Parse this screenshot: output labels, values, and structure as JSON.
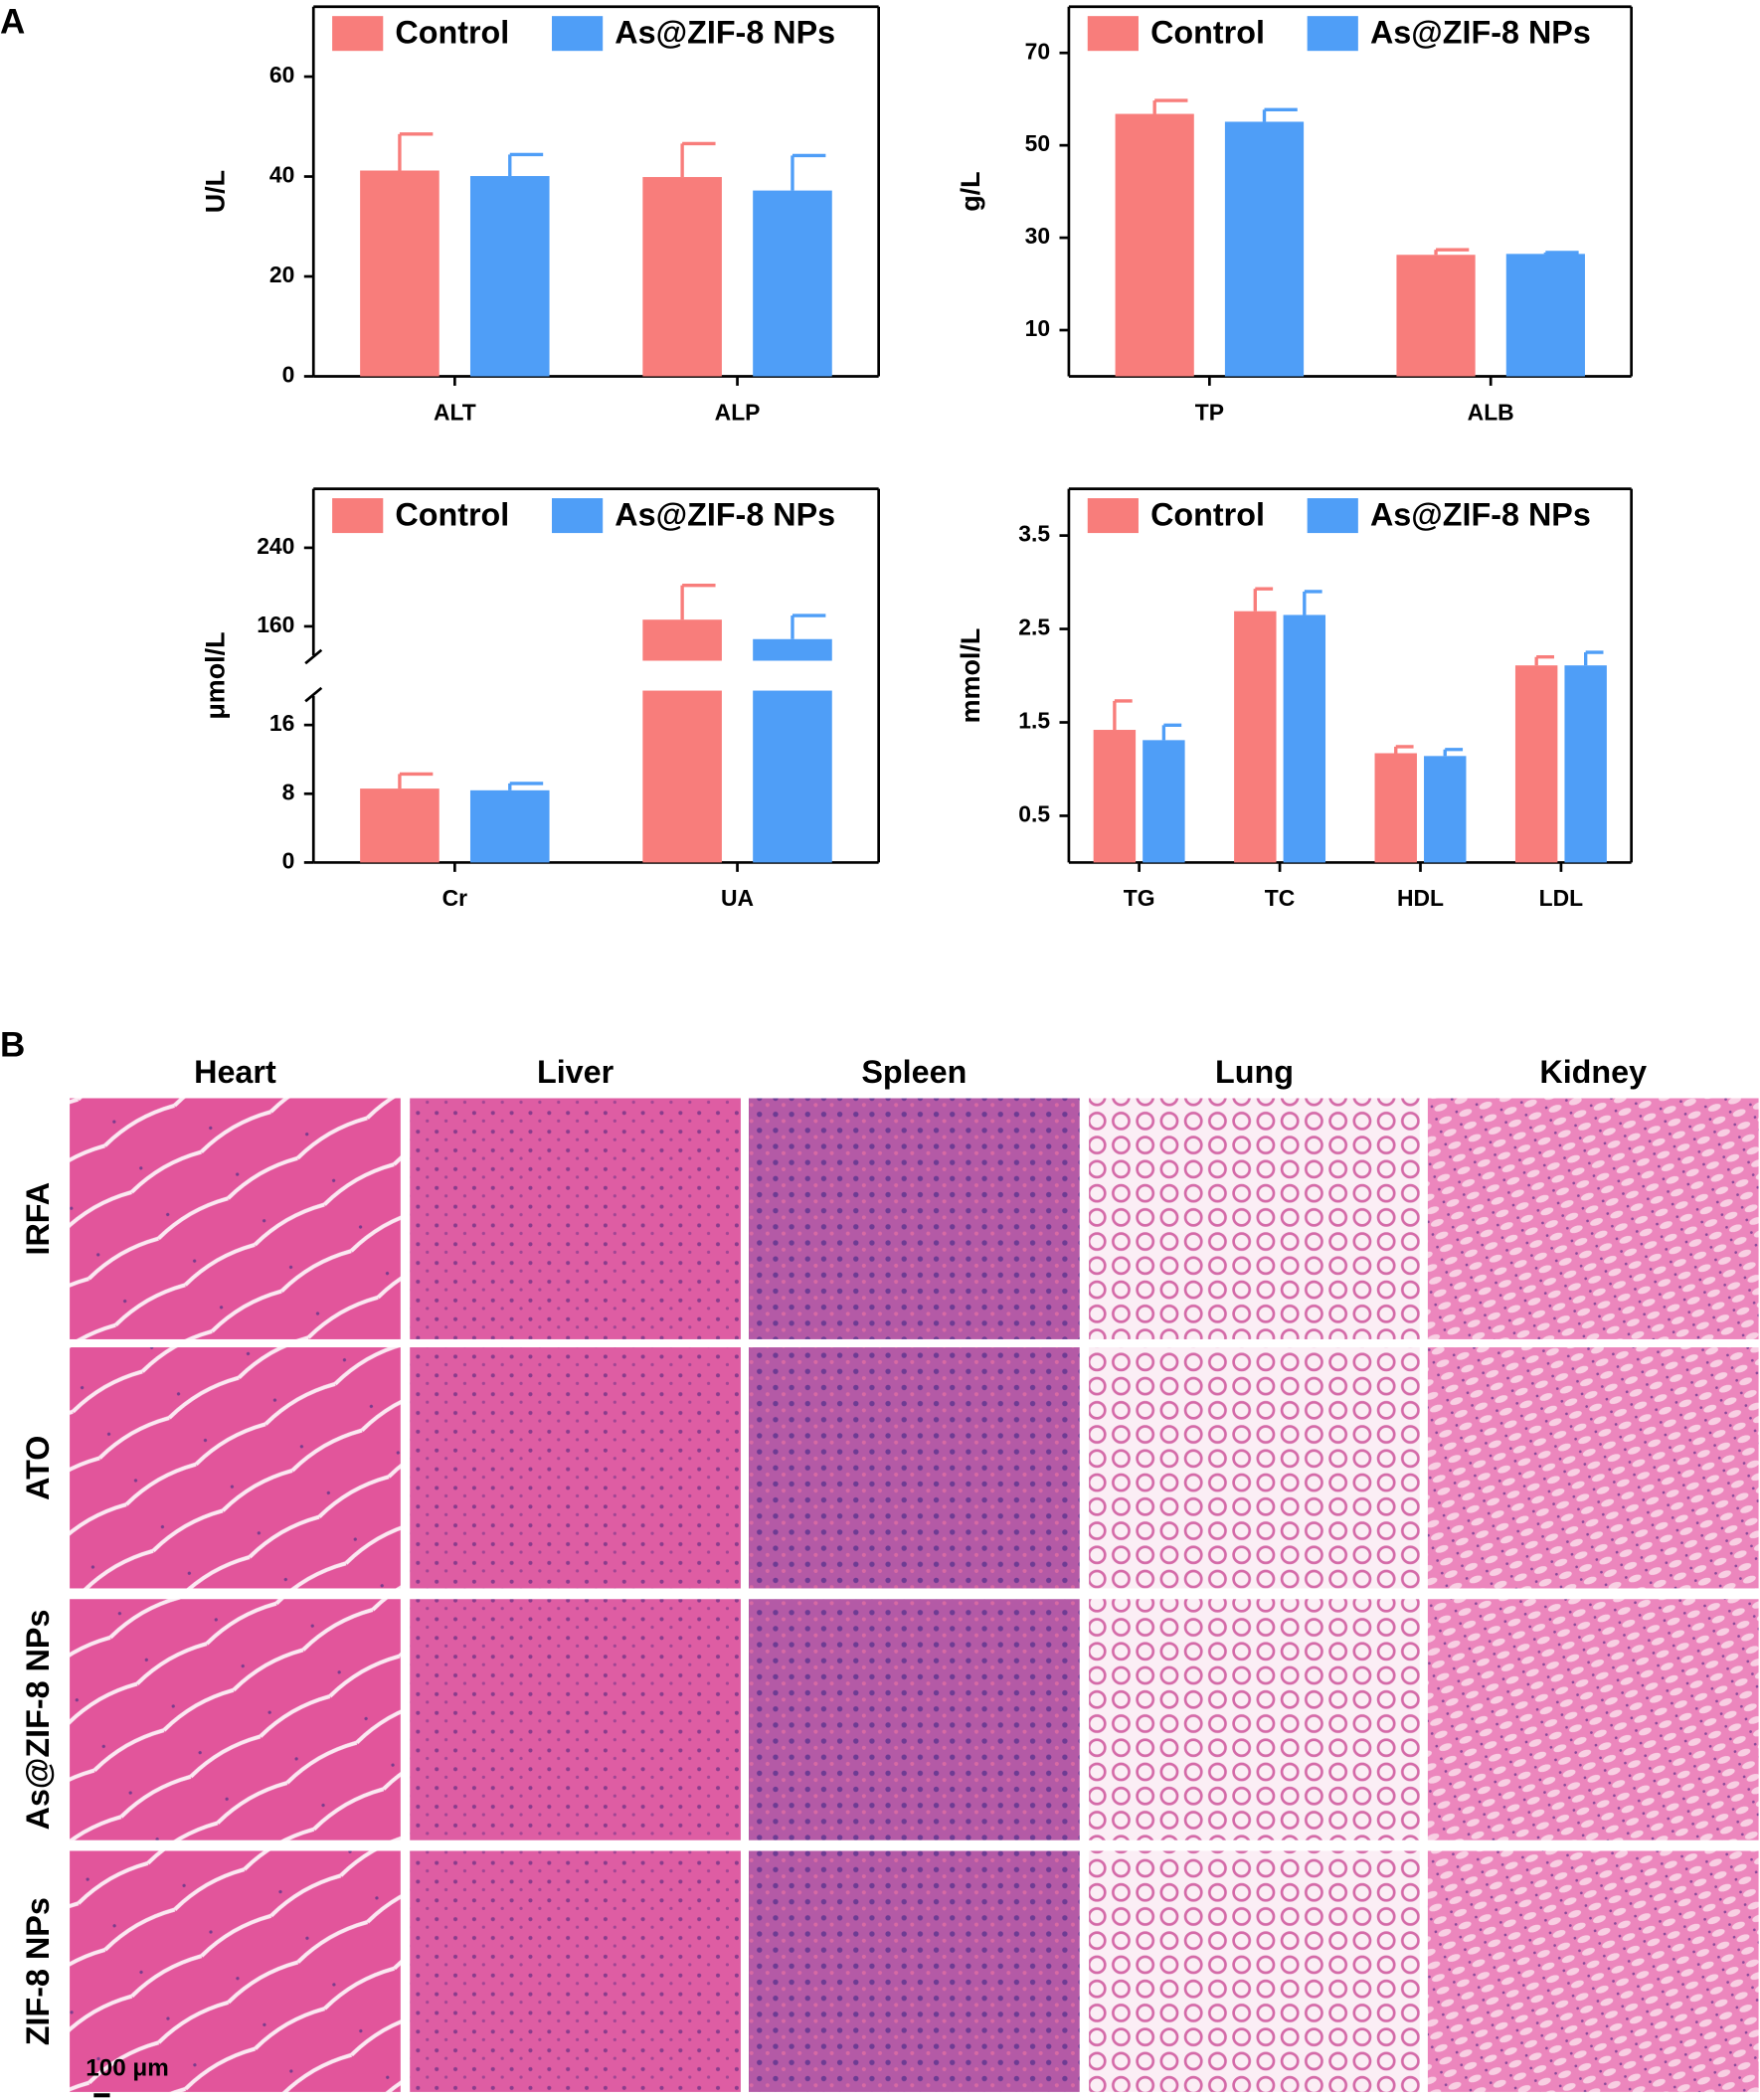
{
  "panel_labels": [
    "A",
    "B"
  ],
  "chart_data": [
    {
      "type": "bar",
      "ylabel": "U/L",
      "categories": [
        "ALT",
        "ALP"
      ],
      "series": [
        {
          "name": "Control",
          "color": "#f87d7b",
          "values": [
            41.2,
            39.9
          ],
          "errors": [
            7.3,
            6.7
          ]
        },
        {
          "name": "As@ZIF-8 NPs",
          "color": "#4f9ef7",
          "values": [
            40.1,
            37.2
          ],
          "errors": [
            4.3,
            7.0
          ]
        }
      ],
      "ylim": [
        0,
        74
      ],
      "yticks": [
        0,
        20,
        40,
        60
      ]
    },
    {
      "type": "bar",
      "ylabel": "g/L",
      "categories": [
        "TP",
        "ALB"
      ],
      "series": [
        {
          "name": "Control",
          "color": "#f87d7b",
          "values": [
            56.8,
            26.3
          ],
          "errors": [
            2.9,
            1.1
          ]
        },
        {
          "name": "As@ZIF-8 NPs",
          "color": "#4f9ef7",
          "values": [
            55.1,
            26.5
          ],
          "errors": [
            2.6,
            0.3
          ]
        }
      ],
      "ylim": [
        0,
        80
      ],
      "yticks": [
        10,
        30,
        50,
        70
      ]
    },
    {
      "type": "bar",
      "ylabel": "μmol/L",
      "categories": [
        "Cr",
        "UA"
      ],
      "series": [
        {
          "name": "Control",
          "color": "#f87d7b",
          "values": [
            8.6,
            166.8
          ],
          "errors": [
            1.7,
            35
          ]
        },
        {
          "name": "As@ZIF-8 NPs",
          "color": "#4f9ef7",
          "values": [
            8.4,
            147
          ],
          "errors": [
            0.8,
            24
          ]
        }
      ],
      "ylim": [
        0,
        300
      ],
      "ybreak": [
        20,
        125
      ],
      "yticks": [
        0,
        8,
        16,
        160,
        240
      ]
    },
    {
      "type": "bar",
      "ylabel": "mmol/L",
      "categories": [
        "TG",
        "TC",
        "HDL",
        "LDL"
      ],
      "series": [
        {
          "name": "Control",
          "color": "#f87d7b",
          "values": [
            1.42,
            2.69,
            1.17,
            2.11
          ],
          "errors": [
            0.31,
            0.24,
            0.07,
            0.09
          ]
        },
        {
          "name": "As@ZIF-8 NPs",
          "color": "#4f9ef7",
          "values": [
            1.31,
            2.65,
            1.14,
            2.11
          ],
          "errors": [
            0.16,
            0.25,
            0.07,
            0.14
          ]
        }
      ],
      "ylim": [
        0,
        4
      ],
      "yticks": [
        0.5,
        1.5,
        2.5,
        3.5
      ]
    }
  ],
  "histology": {
    "columns": [
      "Heart",
      "Liver",
      "Spleen",
      "Lung",
      "Kidney"
    ],
    "rows": [
      "IRFA",
      "ATO",
      "As@ZIF-8 NPs",
      "ZIF-8 NPs"
    ],
    "scale_bar": "100 μm"
  }
}
